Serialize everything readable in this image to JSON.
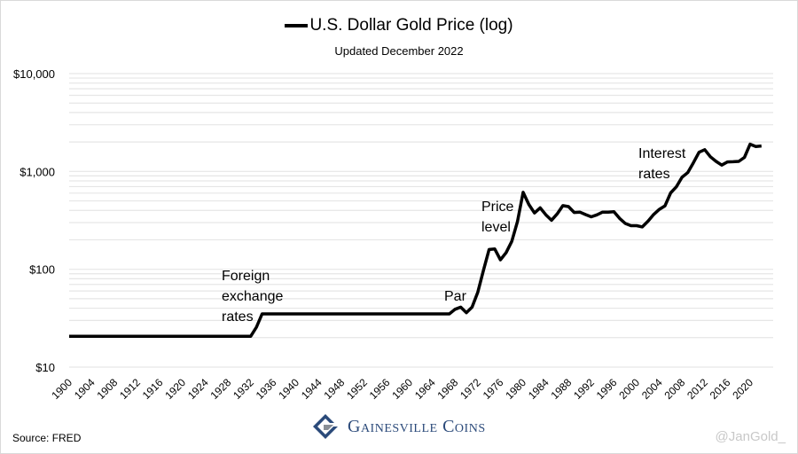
{
  "chart_data": {
    "type": "line",
    "title": "U.S. Dollar Gold Price (log)",
    "subtitle": "Updated December 2022",
    "legend": [
      "U.S. Dollar Gold Price (log)"
    ],
    "legend_placement": "top-center",
    "xlabel": "",
    "ylabel": "",
    "yscale": "log",
    "ylim": [
      10,
      10000
    ],
    "xlim": [
      1900,
      2022
    ],
    "grid": true,
    "y_ticks": [
      {
        "value": 10,
        "label": "$10"
      },
      {
        "value": 100,
        "label": "$100"
      },
      {
        "value": 1000,
        "label": "$1,000"
      },
      {
        "value": 10000,
        "label": "$10,000"
      }
    ],
    "x_ticks": [
      "1900",
      "1904",
      "1908",
      "1912",
      "1916",
      "1920",
      "1924",
      "1928",
      "1932",
      "1936",
      "1940",
      "1944",
      "1948",
      "1952",
      "1956",
      "1960",
      "1964",
      "1968",
      "1972",
      "1976",
      "1980",
      "1984",
      "1988",
      "1992",
      "1996",
      "2000",
      "2004",
      "2008",
      "2012",
      "2016",
      "2020"
    ],
    "series": [
      {
        "name": "Gold price (USD)",
        "color": "#000000",
        "x": [
          1900,
          1932,
          1933,
          1934,
          1967,
          1968,
          1969,
          1970,
          1971,
          1972,
          1973,
          1974,
          1975,
          1976,
          1977,
          1978,
          1979,
          1980,
          1981,
          1982,
          1983,
          1984,
          1985,
          1986,
          1987,
          1988,
          1989,
          1990,
          1991,
          1992,
          1993,
          1994,
          1995,
          1996,
          1997,
          1998,
          1999,
          2000,
          2001,
          2002,
          2003,
          2004,
          2005,
          2006,
          2007,
          2008,
          2009,
          2010,
          2011,
          2012,
          2013,
          2014,
          2015,
          2016,
          2017,
          2018,
          2019,
          2020,
          2021,
          2022
        ],
        "values": [
          20.67,
          20.67,
          25.6,
          35,
          35,
          39,
          41,
          36,
          41,
          58,
          97,
          159,
          161,
          125,
          148,
          193,
          307,
          612,
          460,
          376,
          424,
          361,
          317,
          368,
          447,
          437,
          381,
          384,
          362,
          344,
          360,
          384,
          384,
          388,
          331,
          294,
          279,
          279,
          271,
          310,
          363,
          410,
          445,
          604,
          696,
          872,
          972,
          1225,
          1572,
          1669,
          1411,
          1266,
          1160,
          1251,
          1257,
          1268,
          1393,
          1900,
          1800,
          1820
        ]
      }
    ],
    "annotations": [
      {
        "text": [
          "Foreign",
          "exchange",
          "rates"
        ],
        "x": 1932
      },
      {
        "text": [
          "Par"
        ],
        "x": 1968
      },
      {
        "text": [
          "Price",
          "level"
        ],
        "x": 1978
      },
      {
        "text": [
          "Interest",
          "rates"
        ],
        "x": 2006
      }
    ]
  },
  "source": "Source: FRED",
  "brand": "Gainesville Coins",
  "handle": "@JanGold_",
  "colors": {
    "line": "#000000",
    "grid": "#e6e6e6",
    "brand": "#2b4a7a"
  }
}
